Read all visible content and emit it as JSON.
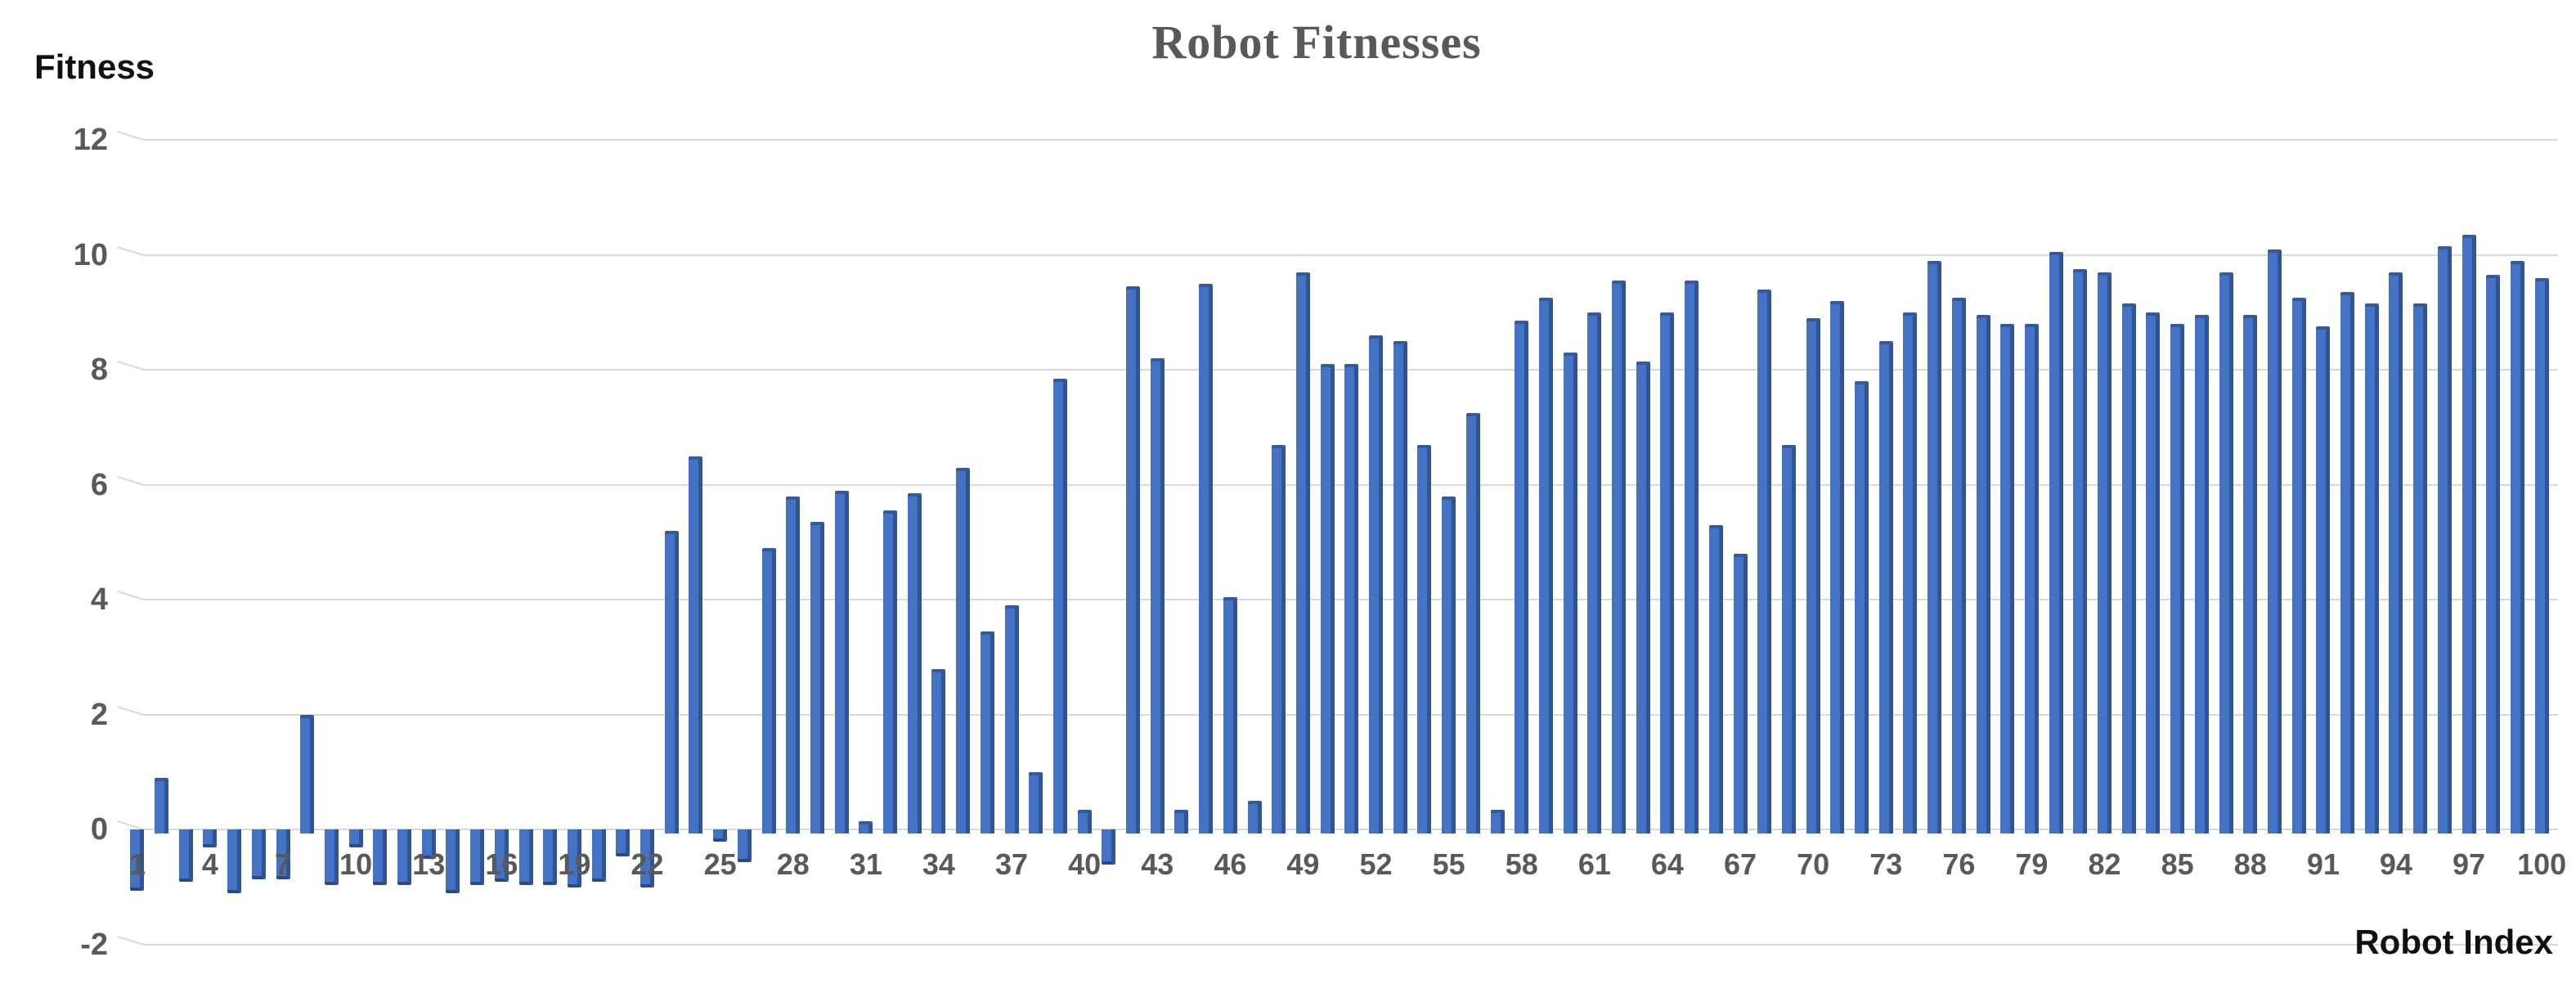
{
  "page": {
    "background": "#ffffff"
  },
  "header": {
    "title": "Robot Fitnesses"
  },
  "axes": {
    "y_title": "Fitness",
    "x_title": "Robot Index"
  },
  "colors": {
    "bar_fill": "#4472C4",
    "bar_side": "#2F5597",
    "gridline": "#D9D9D9",
    "tick_label": "#595959",
    "title_text": "#595959",
    "axis_title_text": "#111111"
  },
  "chart_data": {
    "type": "bar",
    "title": "Robot Fitnesses",
    "xlabel": "Robot Index",
    "ylabel": "Fitness",
    "grid": true,
    "legend": false,
    "ylim": [
      -2,
      12
    ],
    "y_ticks": [
      12,
      10,
      8,
      6,
      4,
      2,
      0,
      -2
    ],
    "x_tick_labels_shown": [
      1,
      4,
      7,
      10,
      13,
      16,
      19,
      22,
      25,
      28,
      31,
      34,
      37,
      40,
      43,
      46,
      49,
      52,
      55,
      58,
      61,
      64,
      67,
      70,
      73,
      76,
      79,
      82,
      85,
      88,
      91,
      94,
      97,
      100
    ],
    "x": [
      1,
      2,
      3,
      4,
      5,
      6,
      7,
      8,
      9,
      10,
      11,
      12,
      13,
      14,
      15,
      16,
      17,
      18,
      19,
      20,
      21,
      22,
      23,
      24,
      25,
      26,
      27,
      28,
      29,
      30,
      31,
      32,
      33,
      34,
      35,
      36,
      37,
      38,
      39,
      40,
      41,
      42,
      43,
      44,
      45,
      46,
      47,
      48,
      49,
      50,
      51,
      52,
      53,
      54,
      55,
      56,
      57,
      58,
      59,
      60,
      61,
      62,
      63,
      64,
      65,
      66,
      67,
      68,
      69,
      70,
      71,
      72,
      73,
      74,
      75,
      76,
      77,
      78,
      79,
      80,
      81,
      82,
      83,
      84,
      85,
      86,
      87,
      88,
      89,
      90,
      91,
      92,
      93,
      94,
      95,
      96,
      97,
      98,
      99,
      100
    ],
    "values": [
      -1.0,
      0.9,
      -0.85,
      -0.25,
      -1.05,
      -0.8,
      -0.8,
      2.0,
      -0.9,
      -0.25,
      -0.9,
      -0.9,
      -0.45,
      -1.05,
      -0.9,
      -0.85,
      -0.9,
      -0.9,
      -0.95,
      -0.85,
      -0.4,
      -0.95,
      5.2,
      6.5,
      -0.15,
      -0.5,
      4.9,
      5.8,
      5.35,
      5.9,
      0.15,
      5.55,
      5.85,
      2.8,
      6.3,
      3.45,
      3.9,
      1.0,
      7.85,
      0.35,
      -0.55,
      9.45,
      8.2,
      0.35,
      9.5,
      4.05,
      0.5,
      6.7,
      9.7,
      8.1,
      8.1,
      8.6,
      8.5,
      6.7,
      5.8,
      7.25,
      0.35,
      8.85,
      9.25,
      8.3,
      9.0,
      9.55,
      8.15,
      9.0,
      9.55,
      5.3,
      4.8,
      9.4,
      6.7,
      8.9,
      9.2,
      7.8,
      8.5,
      9.0,
      9.9,
      9.25,
      8.95,
      8.8,
      8.8,
      10.05,
      9.75,
      9.7,
      9.15,
      9.0,
      8.8,
      8.95,
      9.7,
      8.95,
      10.1,
      9.25,
      8.75,
      9.35,
      9.15,
      9.7,
      9.15,
      10.15,
      10.35,
      9.65,
      9.9,
      9.6
    ]
  }
}
